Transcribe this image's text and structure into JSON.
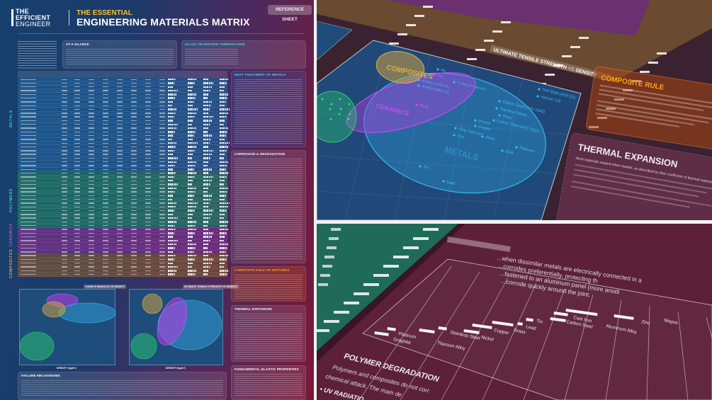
{
  "poster": {
    "brand": [
      "THE",
      "EFFICIENT",
      "ENGINEER"
    ],
    "title_top": "THE ESSENTIAL",
    "title_main": "ENGINEERING MATERIALS MATRIX",
    "badge": "REFERENCE SHEET",
    "cards": {
      "at_a_glance": "AT-A-GLANCE",
      "glass_transition": "GLASS TRANSITION TEMPERATURE",
      "heat_treatment": "HEAT TREATMENT OF METALS",
      "corrosion": "CORROSION & DEGRADATION",
      "composite_rule": "COMPOSITE RULE OF MIXTURES",
      "thermal_expansion": "THERMAL EXPANSION",
      "elastic": "FUNDAMENTAL ELASTIC PROPERTIES",
      "failure": "FAILURE MECHANISMS"
    },
    "categories": {
      "metals": "METALS",
      "polymers": "POLYMERS",
      "ceramics": "CERAMICS",
      "composites": "COMPOSITES"
    },
    "category_colors": {
      "metals": "#1f5f96",
      "polymers": "#1f7a66",
      "ceramics": "#7a2e8c",
      "composites": "#7a5232"
    },
    "chart_titles": {
      "modulus": "YOUNG'S MODULUS VS DENSITY",
      "uts": "ULTIMATE TENSILE STRENGTH VS DENSITY"
    },
    "density_label": "DENSITY (kg/m³)"
  },
  "closeup_chart": {
    "title_a": "ULTIMATE TENSILE STRENGTH",
    "title_vs": "VS",
    "title_b": "DENSITY",
    "groups": {
      "metals": "METALS",
      "ceramics": "CERAMICS",
      "composites": "COMPOSITES"
    },
    "group_colors": {
      "metals": "#2fb8e8",
      "ceramics": "#c040e0",
      "composites": "#e0b040",
      "polymers": "#30d070"
    },
    "metal_labels": [
      "Tool Steel (AISI D2)",
      "Inconel 718",
      "Carbon Steel (AISI 1045)",
      "Stainless Steels",
      "Brass",
      "Carbon Steel (AISI 1020)",
      "Bronze",
      "Copper",
      "Gray Cast Iron",
      "Zinc",
      "Silver",
      "Platinum",
      "Gold",
      "Tin",
      "Lead"
    ],
    "ceramic_labels": [
      "SiC",
      "Al₂O₃"
    ],
    "alloy_labels": [
      "Al Alloy (7075-T6)",
      "Al Alloy (6061-T6)",
      "Ti Alloy (Ti-6Al-4V)",
      "Mg"
    ],
    "composite_panel_title": "COMPOSITE RULE",
    "thermal_panel_title": "THERMAL EXPANSION",
    "thermal_text": "Most materials expand when heated, as described by their coefficient of thermal expansion."
  },
  "closeup_galvanic": {
    "intro_text": [
      "...when dissimilar metals are electrically connected in a",
      "...corrodes preferentially, protecting th",
      "...fastened to an aluminum panel (more anodi",
      "...corrode quickly around the joint."
    ],
    "metals": [
      "Graphite",
      "Platinum",
      "Titanium Alloy",
      "Stainless Steel",
      "Nickel",
      "Copper",
      "Brass",
      "Lead",
      "Tin",
      "Carbon Steel",
      "Cast Iron",
      "Aluminum Alloy",
      "Zinc",
      "Magne"
    ],
    "section_title": "POLYMER DEGRADATION",
    "section_text": [
      "Polymers and composites do not corr",
      "chemical attack.  The main de"
    ],
    "bullet": "• UV RADIATIO"
  }
}
